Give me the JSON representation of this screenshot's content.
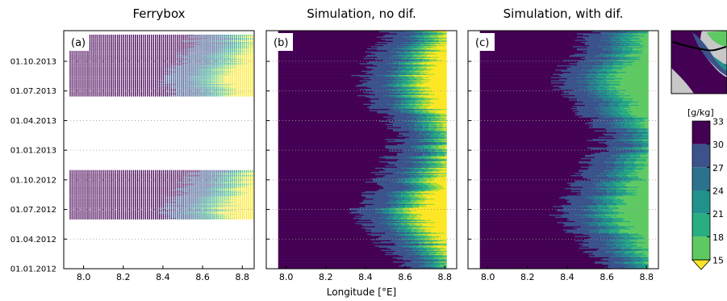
{
  "chart_data": {
    "type": "heatmap",
    "panels": [
      {
        "label": "(a)",
        "title": "Ferrybox",
        "kind": "observation"
      },
      {
        "label": "(b)",
        "title": "Simulation, no dif.",
        "kind": "simulation"
      },
      {
        "label": "(c)",
        "title": "Simulation, with dif.",
        "kind": "simulation"
      }
    ],
    "xlabel": "Longitude [°E]",
    "xlim": [
      7.9,
      8.86
    ],
    "xticks": [
      "8.0",
      "8.2",
      "8.4",
      "8.6",
      "8.8"
    ],
    "ylabel": "",
    "y_ticks": [
      "01.10.2013",
      "01.07.2013",
      "01.04.2013",
      "01.01.2013",
      "01.10.2012",
      "01.07.2012",
      "01.04.2012",
      "01.01.2012"
    ],
    "colorbar": {
      "unit": "[g/kg]",
      "ticks": [
        "33",
        "30",
        "27",
        "24",
        "21",
        "18",
        "15"
      ],
      "colors": [
        "#440154",
        "#3b528b",
        "#2c728e",
        "#21918c",
        "#28ae80",
        "#5ec962",
        "#addc30",
        "#fde725"
      ],
      "extend": "min"
    },
    "observation_periods": [
      {
        "start": "2012-05-20",
        "end": "2012-10-05"
      },
      {
        "start": "2013-05-01",
        "end": "2013-10-20"
      }
    ],
    "approximate_fronts": [
      {
        "month": 1,
        "s30": 8.62,
        "s27": 8.72
      },
      {
        "month": 3,
        "s30": 8.5,
        "s27": 8.62
      },
      {
        "month": 6,
        "s30": 8.35,
        "s27": 8.48
      },
      {
        "month": 9,
        "s30": 8.45,
        "s27": 8.58
      },
      {
        "month": 12,
        "s30": 8.55,
        "s27": 8.68
      }
    ],
    "grid": true
  }
}
